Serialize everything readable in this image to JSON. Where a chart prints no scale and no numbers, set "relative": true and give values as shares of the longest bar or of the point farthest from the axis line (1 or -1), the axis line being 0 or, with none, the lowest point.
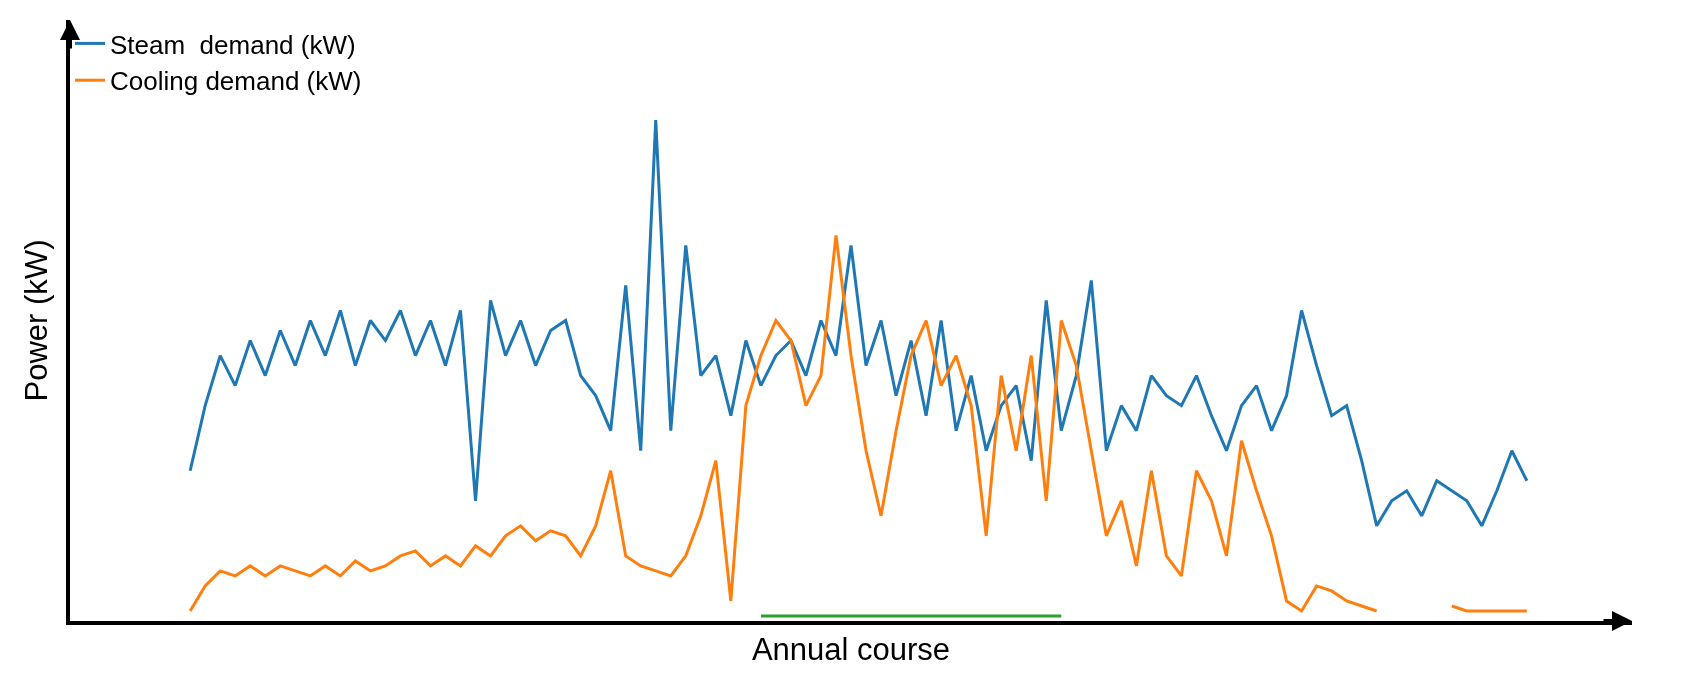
{
  "chart_data": {
    "type": "line",
    "relative": true,
    "xlabel": "Annual course",
    "ylabel": "Power (kW)",
    "legend": "top left",
    "marker": "none",
    "line_style": "solid",
    "categories": [
      null,
      null,
      null,
      null,
      null,
      null,
      null,
      null,
      null,
      null,
      null,
      null,
      null,
      null,
      null,
      null,
      null,
      null,
      null,
      null,
      null,
      null,
      null,
      null,
      null,
      null,
      null,
      null,
      null,
      null,
      null,
      null,
      null,
      null,
      null,
      null,
      null,
      null,
      null,
      null,
      null,
      null,
      null,
      null,
      null,
      null,
      null,
      null,
      null,
      null,
      null,
      null,
      null,
      null,
      null,
      null,
      null,
      null,
      null,
      null,
      null,
      null,
      null,
      null,
      null,
      null,
      null,
      null,
      null,
      null,
      null,
      null,
      null,
      null,
      null,
      null,
      null,
      null,
      null,
      null,
      null,
      null,
      null,
      null,
      null,
      null,
      null,
      null,
      null,
      null
    ],
    "series": [
      {
        "name": "Steam  demand (kW)",
        "color": "#1f77b4",
        "values": [
          0.3,
          0.43,
          0.53,
          0.47,
          0.56,
          0.49,
          0.58,
          0.51,
          0.6,
          0.53,
          0.62,
          0.51,
          0.6,
          0.56,
          0.62,
          0.53,
          0.6,
          0.51,
          0.62,
          0.24,
          0.64,
          0.53,
          0.6,
          0.51,
          0.58,
          0.6,
          0.49,
          0.45,
          0.38,
          0.67,
          0.34,
          1.0,
          0.38,
          0.75,
          0.49,
          0.53,
          0.41,
          0.56,
          0.47,
          0.53,
          0.56,
          0.49,
          0.6,
          0.53,
          0.75,
          0.51,
          0.6,
          0.45,
          0.56,
          0.41,
          0.6,
          0.38,
          0.49,
          0.34,
          0.43,
          0.47,
          0.32,
          0.64,
          0.38,
          0.49,
          0.68,
          0.34,
          0.43,
          0.38,
          0.49,
          0.45,
          0.43,
          0.49,
          0.41,
          0.34,
          0.43,
          0.47,
          0.38,
          0.45,
          0.62,
          0.51,
          0.41,
          0.43,
          0.32,
          0.19,
          0.24,
          0.26,
          0.21,
          0.28,
          0.26,
          0.24,
          0.19,
          0.26,
          0.34,
          0.28
        ]
      },
      {
        "name": "Cooling demand (kW)",
        "color": "#ff7f0e",
        "values": [
          0.02,
          0.07,
          0.1,
          0.09,
          0.11,
          0.09,
          0.11,
          0.1,
          0.09,
          0.11,
          0.09,
          0.12,
          0.1,
          0.11,
          0.13,
          0.14,
          0.11,
          0.13,
          0.11,
          0.15,
          0.13,
          0.17,
          0.19,
          0.16,
          0.18,
          0.17,
          0.13,
          0.19,
          0.3,
          0.13,
          0.11,
          0.1,
          0.09,
          0.13,
          0.21,
          0.32,
          0.04,
          0.43,
          0.53,
          0.6,
          0.56,
          0.43,
          0.49,
          0.77,
          0.53,
          0.34,
          0.21,
          0.38,
          0.53,
          0.6,
          0.47,
          0.53,
          0.43,
          0.17,
          0.49,
          0.34,
          0.53,
          0.24,
          0.6,
          0.51,
          0.34,
          0.17,
          0.24,
          0.11,
          0.3,
          0.13,
          0.09,
          0.3,
          0.24,
          0.13,
          0.36,
          0.26,
          0.17,
          0.04,
          0.02,
          0.07,
          0.06,
          0.04,
          0.03,
          0.02,
          null,
          null,
          null,
          null,
          0.03,
          0.02,
          0.02,
          0.02,
          0.02,
          0.02
        ]
      },
      {
        "color": "#2ca02c",
        "values": [
          null,
          null,
          null,
          null,
          null,
          null,
          null,
          null,
          null,
          null,
          null,
          null,
          null,
          null,
          null,
          null,
          null,
          null,
          null,
          null,
          null,
          null,
          null,
          null,
          null,
          null,
          null,
          null,
          null,
          null,
          null,
          null,
          null,
          null,
          null,
          null,
          null,
          null,
          0.01,
          0.01,
          0.01,
          0.01,
          0.01,
          0.01,
          0.01,
          0.01,
          0.01,
          0.01,
          0.01,
          0.01,
          0.01,
          0.01,
          0.01,
          0.01,
          0.01,
          0.01,
          0.01,
          0.01,
          0.01,
          null,
          null,
          null,
          null,
          null,
          null,
          null,
          null,
          null,
          null,
          null,
          null,
          null,
          null,
          null,
          null,
          null,
          null,
          null,
          null,
          null,
          null,
          null,
          null,
          null,
          null,
          null,
          null,
          null,
          null,
          null
        ]
      }
    ]
  }
}
